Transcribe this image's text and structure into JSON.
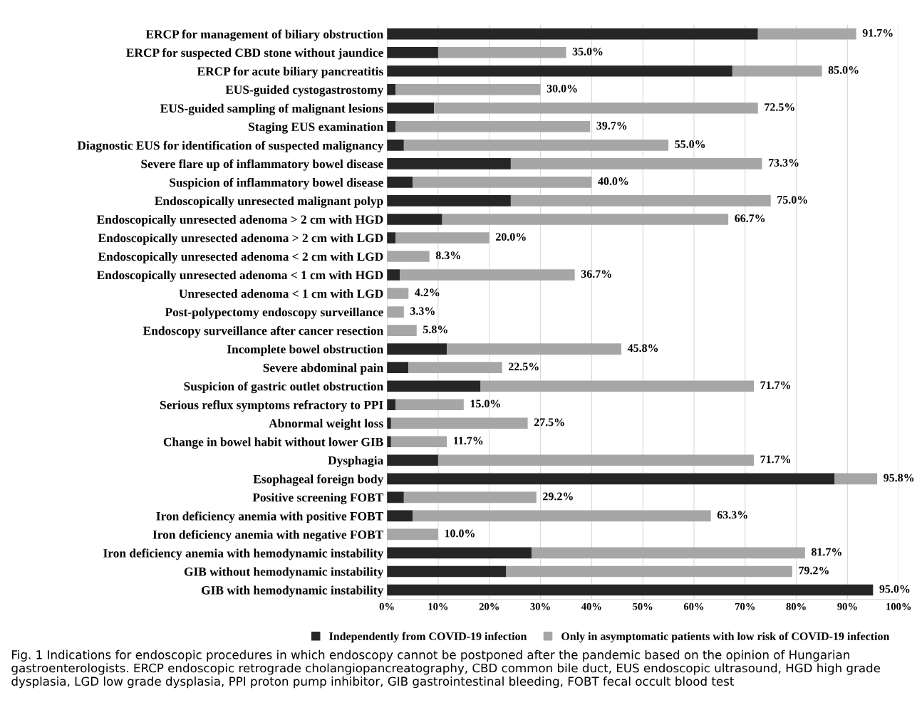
{
  "chart_data": {
    "type": "bar",
    "orientation": "horizontal",
    "stacked": true,
    "categories": [
      "ERCP for management of biliary obstruction",
      "ERCP for suspected CBD stone without jaundice",
      "ERCP for acute biliary pancreatitis",
      "EUS-guided cystogastrostomy",
      "EUS-guided sampling of malignant lesions",
      "Staging EUS examination",
      "Diagnostic EUS for identification of suspected malignancy",
      "Severe flare up of inflammatory bowel disease",
      "Suspicion of inflammatory bowel disease",
      "Endoscopically unresected malignant polyp",
      "Endoscopically unresected adenoma > 2 cm with HGD",
      "Endoscopically unresected adenoma > 2 cm with LGD",
      "Endoscopically unresected adenoma < 2 cm with LGD",
      "Endoscopically unresected adenoma < 1 cm with HGD",
      "Unresected adenoma < 1 cm with LGD",
      "Post-polypectomy endoscopy surveillance",
      "Endoscopy surveillance after cancer resection",
      "Incomplete bowel obstruction",
      "Severe abdominal pain",
      "Suspicion of gastric outlet obstruction",
      "Serious reflux symptoms refractory to PPI",
      "Abnormal weight loss",
      "Change in bowel habit without lower GIB",
      "Dysphagia",
      "Esophageal foreign body",
      "Positive screening FOBT",
      "Iron deficiency anemia with positive FOBT",
      "Iron deficiency anemia with negative FOBT",
      "Iron deficiency anemia with hemodynamic instability",
      "GIB without hemodynamic instability",
      "GIB with hemodynamic instability"
    ],
    "series": [
      {
        "name": "Independently from COVID-19 infection",
        "color": "#262626",
        "values": [
          72.5,
          10.0,
          67.5,
          1.7,
          9.2,
          1.7,
          3.3,
          24.2,
          5.0,
          24.2,
          10.8,
          1.7,
          0,
          2.5,
          0,
          0,
          0,
          11.7,
          4.2,
          18.3,
          1.7,
          0.8,
          0.8,
          10.0,
          87.5,
          3.3,
          5.0,
          0,
          28.3,
          23.3,
          95.0
        ]
      },
      {
        "name": "Only in asymptomatic patients with low risk of COVID-19 infection",
        "color": "#a6a6a6",
        "values": [
          19.2,
          25.0,
          17.5,
          28.3,
          63.3,
          38.0,
          51.7,
          49.1,
          35.0,
          50.8,
          55.9,
          18.3,
          8.3,
          34.2,
          4.2,
          3.3,
          5.8,
          34.1,
          18.3,
          53.4,
          13.3,
          26.7,
          10.9,
          61.7,
          8.3,
          25.9,
          58.3,
          10.0,
          53.4,
          55.9,
          0
        ]
      }
    ],
    "totals": [
      "91.7%",
      "35.0%",
      "85.0%",
      "30.0%",
      "72.5%",
      "39.7%",
      "55.0%",
      "73.3%",
      "40.0%",
      "75.0%",
      "66.7%",
      "20.0%",
      "8.3%",
      "36.7%",
      "4.2%",
      "3.3%",
      "5.8%",
      "45.8%",
      "22.5%",
      "71.7%",
      "15.0%",
      "27.5%",
      "11.7%",
      "71.7%",
      "95.8%",
      "29.2%",
      "63.3%",
      "10.0%",
      "81.7%",
      "79.2%",
      "95.0%"
    ],
    "xlim": [
      0,
      100
    ],
    "xticks": [
      {
        "value": 0,
        "label": "0%"
      },
      {
        "value": 10,
        "label": "10%"
      },
      {
        "value": 20,
        "label": "20%"
      },
      {
        "value": 30,
        "label": "30%"
      },
      {
        "value": 40,
        "label": "40%"
      },
      {
        "value": 50,
        "label": "50%"
      },
      {
        "value": 60,
        "label": "60%"
      },
      {
        "value": 70,
        "label": "70%"
      },
      {
        "value": 80,
        "label": "80%"
      },
      {
        "value": 90,
        "label": "90%"
      },
      {
        "value": 100,
        "label": "100%"
      }
    ],
    "grid": "x",
    "legend": "bottom",
    "annotations": [
      "Fig. 1 Indications for endoscopic procedures in which endoscopy cannot be postponed after the pandemic based on the opinion of Hungarian gastroenterologists. ERCP endoscopic retrograde cholangiopancreatography, CBD common bile duct, EUS endoscopic ultrasound, HGD high grade dysplasia, LGD low grade dysplasia, PPI proton pump inhibitor, GIB gastrointestinal bleeding, FOBT fecal occult blood test"
    ]
  }
}
